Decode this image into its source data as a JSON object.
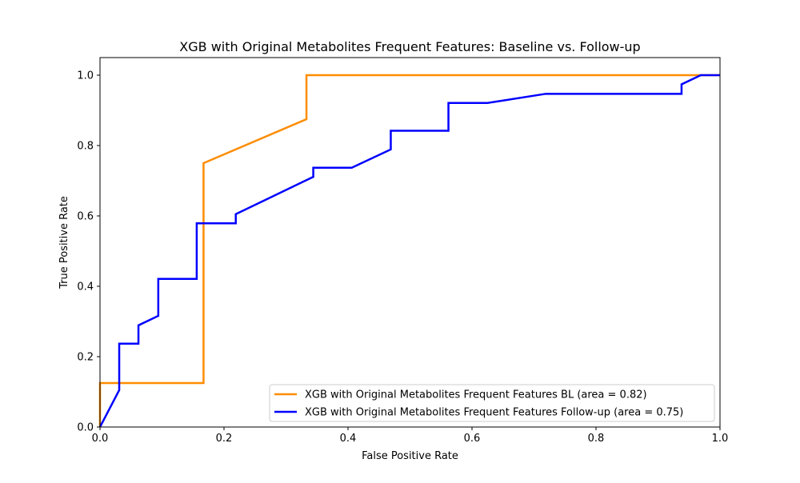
{
  "chart_data": {
    "type": "line",
    "title": "XGB with Original Metabolites Frequent Features: Baseline vs. Follow-up",
    "xlabel": "False Positive Rate",
    "ylabel": "True Positive Rate",
    "xlim": [
      0.0,
      1.0
    ],
    "ylim": [
      0.0,
      1.05
    ],
    "xticks": [
      "0.0",
      "0.2",
      "0.4",
      "0.6",
      "0.8",
      "1.0"
    ],
    "yticks": [
      "0.0",
      "0.2",
      "0.4",
      "0.6",
      "0.8",
      "1.0"
    ],
    "grid": false,
    "legend_position": "lower-right",
    "series": [
      {
        "name": "XGB with Original Metabolites Frequent Features BL (area = 0.82)",
        "color": "#ff8c00",
        "x": [
          0.0,
          0.0,
          0.167,
          0.167,
          0.333,
          0.333,
          1.0
        ],
        "y": [
          0.0,
          0.125,
          0.125,
          0.75,
          0.875,
          1.0,
          1.0
        ]
      },
      {
        "name": "XGB with Original Metabolites Frequent Features Follow-up (area = 0.75)",
        "color": "#0000ff",
        "x": [
          0.0,
          0.031,
          0.031,
          0.062,
          0.062,
          0.094,
          0.094,
          0.156,
          0.156,
          0.219,
          0.219,
          0.344,
          0.344,
          0.406,
          0.469,
          0.469,
          0.562,
          0.562,
          0.625,
          0.719,
          0.938,
          0.938,
          0.969,
          1.0
        ],
        "y": [
          0.0,
          0.105,
          0.237,
          0.237,
          0.289,
          0.316,
          0.421,
          0.421,
          0.579,
          0.579,
          0.605,
          0.711,
          0.737,
          0.737,
          0.789,
          0.842,
          0.842,
          0.921,
          0.921,
          0.947,
          0.947,
          0.974,
          1.0,
          1.0
        ]
      }
    ]
  }
}
